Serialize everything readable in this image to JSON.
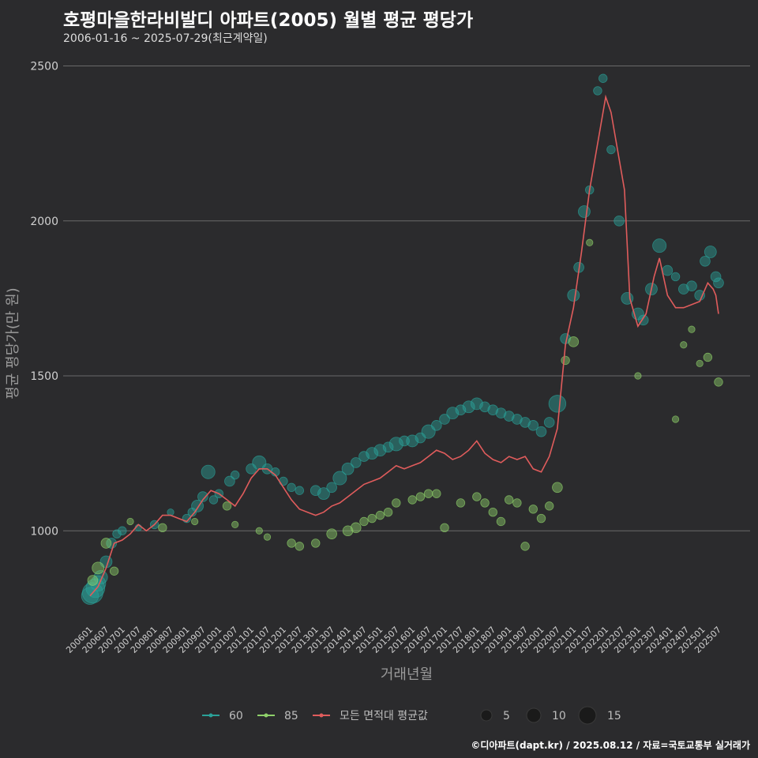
{
  "title": "호평마을한라비발디 아파트(2005) 월별 평균 평당가",
  "subtitle": "2006-01-16 ~ 2025-07-29(최근계약일)",
  "footer": "©디아파트(dapt.kr) / 2025.08.12 / 자료=국토교통부 실거래가",
  "colors": {
    "background": "#2b2b2d",
    "grid": "#6a6a6a",
    "s60": "#2aa198",
    "s85": "#8fd16a",
    "avg": "#e05c5c"
  },
  "chart_data": {
    "type": "scatter",
    "xlabel": "거래년월",
    "ylabel": "평균 평당가(만 원)",
    "ylim": [
      700,
      2560
    ],
    "yticks": [
      1000,
      1500,
      2000,
      2500
    ],
    "grid": true,
    "legend_position": "bottom",
    "x_tick_labels": [
      "200601",
      "200607",
      "200701",
      "200707",
      "200801",
      "200807",
      "200901",
      "200907",
      "201001",
      "201007",
      "201101",
      "201107",
      "201201",
      "201207",
      "201301",
      "201307",
      "201401",
      "201407",
      "201501",
      "201507",
      "201601",
      "201607",
      "201701",
      "201707",
      "201801",
      "201807",
      "201901",
      "201907",
      "202001",
      "202007",
      "202101",
      "202107",
      "202201",
      "202207",
      "202301",
      "202307",
      "202401",
      "202407",
      "202501",
      "202507"
    ],
    "x_range": [
      "200601",
      "202507"
    ],
    "series": [
      {
        "name": "60",
        "kind": "bubble",
        "color": "#2aa198",
        "points": [
          [
            "200601",
            790,
            8
          ],
          [
            "200602",
            800,
            10
          ],
          [
            "200603",
            815,
            9
          ],
          [
            "200604",
            830,
            7
          ],
          [
            "200605",
            850,
            6
          ],
          [
            "200607",
            900,
            5
          ],
          [
            "200609",
            960,
            4
          ],
          [
            "200611",
            990,
            3
          ],
          [
            "200701",
            1000,
            3
          ],
          [
            "200707",
            1010,
            2
          ],
          [
            "200801",
            1020,
            3
          ],
          [
            "200807",
            1060,
            2
          ],
          [
            "200901",
            1040,
            3
          ],
          [
            "200903",
            1060,
            3
          ],
          [
            "200905",
            1080,
            5
          ],
          [
            "200907",
            1110,
            4
          ],
          [
            "200909",
            1190,
            6
          ],
          [
            "200911",
            1100,
            3
          ],
          [
            "201001",
            1120,
            3
          ],
          [
            "201005",
            1160,
            4
          ],
          [
            "201007",
            1180,
            3
          ],
          [
            "201101",
            1200,
            4
          ],
          [
            "201104",
            1220,
            6
          ],
          [
            "201107",
            1200,
            4
          ],
          [
            "201110",
            1190,
            3
          ],
          [
            "201201",
            1160,
            3
          ],
          [
            "201204",
            1140,
            3
          ],
          [
            "201207",
            1130,
            3
          ],
          [
            "201301",
            1130,
            4
          ],
          [
            "201304",
            1120,
            5
          ],
          [
            "201307",
            1140,
            4
          ],
          [
            "201310",
            1170,
            6
          ],
          [
            "201401",
            1200,
            5
          ],
          [
            "201404",
            1220,
            4
          ],
          [
            "201407",
            1240,
            4
          ],
          [
            "201410",
            1250,
            5
          ],
          [
            "201501",
            1260,
            5
          ],
          [
            "201504",
            1270,
            4
          ],
          [
            "201507",
            1280,
            6
          ],
          [
            "201510",
            1290,
            4
          ],
          [
            "201601",
            1290,
            5
          ],
          [
            "201604",
            1300,
            4
          ],
          [
            "201607",
            1320,
            6
          ],
          [
            "201610",
            1340,
            4
          ],
          [
            "201701",
            1360,
            4
          ],
          [
            "201704",
            1380,
            5
          ],
          [
            "201707",
            1390,
            4
          ],
          [
            "201710",
            1400,
            5
          ],
          [
            "201801",
            1410,
            5
          ],
          [
            "201804",
            1400,
            4
          ],
          [
            "201807",
            1390,
            4
          ],
          [
            "201810",
            1380,
            4
          ],
          [
            "201901",
            1370,
            4
          ],
          [
            "201904",
            1360,
            4
          ],
          [
            "201907",
            1350,
            4
          ],
          [
            "201910",
            1340,
            4
          ],
          [
            "202001",
            1320,
            4
          ],
          [
            "202004",
            1350,
            4
          ],
          [
            "202007",
            1410,
            8
          ],
          [
            "202010",
            1620,
            4
          ],
          [
            "202101",
            1760,
            5
          ],
          [
            "202103",
            1850,
            4
          ],
          [
            "202105",
            2030,
            5
          ],
          [
            "202107",
            2100,
            3
          ],
          [
            "202110",
            2420,
            3
          ],
          [
            "202112",
            2460,
            3
          ],
          [
            "202203",
            2230,
            3
          ],
          [
            "202206",
            2000,
            4
          ],
          [
            "202209",
            1750,
            5
          ],
          [
            "202301",
            1700,
            5
          ],
          [
            "202303",
            1680,
            4
          ],
          [
            "202306",
            1780,
            5
          ],
          [
            "202309",
            1920,
            6
          ],
          [
            "202312",
            1840,
            4
          ],
          [
            "202403",
            1820,
            3
          ],
          [
            "202406",
            1780,
            4
          ],
          [
            "202409",
            1790,
            4
          ],
          [
            "202412",
            1760,
            4
          ],
          [
            "202502",
            1870,
            4
          ],
          [
            "202504",
            1900,
            5
          ],
          [
            "202506",
            1820,
            4
          ],
          [
            "202507",
            1800,
            4
          ]
        ]
      },
      {
        "name": "85",
        "kind": "bubble",
        "color": "#8fd16a",
        "points": [
          [
            "200602",
            840,
            4
          ],
          [
            "200604",
            880,
            5
          ],
          [
            "200607",
            960,
            4
          ],
          [
            "200610",
            870,
            3
          ],
          [
            "200704",
            1030,
            2
          ],
          [
            "200804",
            1010,
            3
          ],
          [
            "200904",
            1030,
            2
          ],
          [
            "201004",
            1080,
            3
          ],
          [
            "201007",
            1020,
            2
          ],
          [
            "201104",
            1000,
            2
          ],
          [
            "201107",
            980,
            2
          ],
          [
            "201204",
            960,
            3
          ],
          [
            "201207",
            950,
            3
          ],
          [
            "201301",
            960,
            3
          ],
          [
            "201307",
            990,
            4
          ],
          [
            "201401",
            1000,
            4
          ],
          [
            "201404",
            1010,
            4
          ],
          [
            "201407",
            1030,
            3
          ],
          [
            "201410",
            1040,
            3
          ],
          [
            "201501",
            1050,
            3
          ],
          [
            "201504",
            1060,
            3
          ],
          [
            "201507",
            1090,
            3
          ],
          [
            "201601",
            1100,
            3
          ],
          [
            "201604",
            1110,
            3
          ],
          [
            "201607",
            1120,
            3
          ],
          [
            "201610",
            1120,
            3
          ],
          [
            "201701",
            1010,
            3
          ],
          [
            "201707",
            1090,
            3
          ],
          [
            "201801",
            1110,
            3
          ],
          [
            "201804",
            1090,
            3
          ],
          [
            "201807",
            1060,
            3
          ],
          [
            "201810",
            1030,
            3
          ],
          [
            "201901",
            1100,
            3
          ],
          [
            "201904",
            1090,
            3
          ],
          [
            "201907",
            950,
            3
          ],
          [
            "201910",
            1070,
            3
          ],
          [
            "202001",
            1040,
            3
          ],
          [
            "202004",
            1080,
            3
          ],
          [
            "202007",
            1140,
            4
          ],
          [
            "202010",
            1550,
            3
          ],
          [
            "202101",
            1610,
            4
          ],
          [
            "202107",
            1930,
            2
          ],
          [
            "202301",
            1500,
            2
          ],
          [
            "202403",
            1360,
            2
          ],
          [
            "202406",
            1600,
            2
          ],
          [
            "202409",
            1650,
            2
          ],
          [
            "202412",
            1540,
            2
          ],
          [
            "202503",
            1560,
            3
          ],
          [
            "202507",
            1480,
            3
          ]
        ]
      },
      {
        "name": "모든 면적대 평균값",
        "kind": "line",
        "color": "#e05c5c",
        "points": [
          [
            "200601",
            790
          ],
          [
            "200604",
            820
          ],
          [
            "200607",
            880
          ],
          [
            "200610",
            960
          ],
          [
            "200701",
            970
          ],
          [
            "200704",
            990
          ],
          [
            "200707",
            1020
          ],
          [
            "200710",
            1000
          ],
          [
            "200801",
            1020
          ],
          [
            "200804",
            1050
          ],
          [
            "200807",
            1050
          ],
          [
            "200810",
            1040
          ],
          [
            "200901",
            1030
          ],
          [
            "200904",
            1060
          ],
          [
            "200907",
            1100
          ],
          [
            "200910",
            1130
          ],
          [
            "201001",
            1120
          ],
          [
            "201004",
            1100
          ],
          [
            "201007",
            1080
          ],
          [
            "201010",
            1120
          ],
          [
            "201101",
            1170
          ],
          [
            "201104",
            1200
          ],
          [
            "201107",
            1200
          ],
          [
            "201110",
            1180
          ],
          [
            "201201",
            1140
          ],
          [
            "201204",
            1100
          ],
          [
            "201207",
            1070
          ],
          [
            "201210",
            1060
          ],
          [
            "201301",
            1050
          ],
          [
            "201304",
            1060
          ],
          [
            "201307",
            1080
          ],
          [
            "201310",
            1090
          ],
          [
            "201401",
            1110
          ],
          [
            "201404",
            1130
          ],
          [
            "201407",
            1150
          ],
          [
            "201410",
            1160
          ],
          [
            "201501",
            1170
          ],
          [
            "201504",
            1190
          ],
          [
            "201507",
            1210
          ],
          [
            "201510",
            1200
          ],
          [
            "201601",
            1210
          ],
          [
            "201604",
            1220
          ],
          [
            "201607",
            1240
          ],
          [
            "201610",
            1260
          ],
          [
            "201701",
            1250
          ],
          [
            "201704",
            1230
          ],
          [
            "201707",
            1240
          ],
          [
            "201710",
            1260
          ],
          [
            "201801",
            1290
          ],
          [
            "201804",
            1250
          ],
          [
            "201807",
            1230
          ],
          [
            "201810",
            1220
          ],
          [
            "201901",
            1240
          ],
          [
            "201904",
            1230
          ],
          [
            "201907",
            1240
          ],
          [
            "201910",
            1200
          ],
          [
            "202001",
            1190
          ],
          [
            "202004",
            1240
          ],
          [
            "202007",
            1330
          ],
          [
            "202010",
            1600
          ],
          [
            "202101",
            1720
          ],
          [
            "202104",
            1900
          ],
          [
            "202107",
            2100
          ],
          [
            "202110",
            2250
          ],
          [
            "202201",
            2400
          ],
          [
            "202203",
            2350
          ],
          [
            "202206",
            2200
          ],
          [
            "202208",
            2100
          ],
          [
            "202210",
            1750
          ],
          [
            "202301",
            1660
          ],
          [
            "202304",
            1700
          ],
          [
            "202307",
            1820
          ],
          [
            "202309",
            1880
          ],
          [
            "202312",
            1760
          ],
          [
            "202403",
            1720
          ],
          [
            "202406",
            1720
          ],
          [
            "202409",
            1730
          ],
          [
            "202412",
            1740
          ],
          [
            "202503",
            1800
          ],
          [
            "202505",
            1780
          ],
          [
            "202506",
            1760
          ],
          [
            "202507",
            1700
          ]
        ]
      }
    ],
    "size_legend": {
      "values": [
        "5",
        "10",
        "15"
      ]
    },
    "legend_labels": [
      "60",
      "85",
      "모든 면적대 평균값"
    ]
  }
}
